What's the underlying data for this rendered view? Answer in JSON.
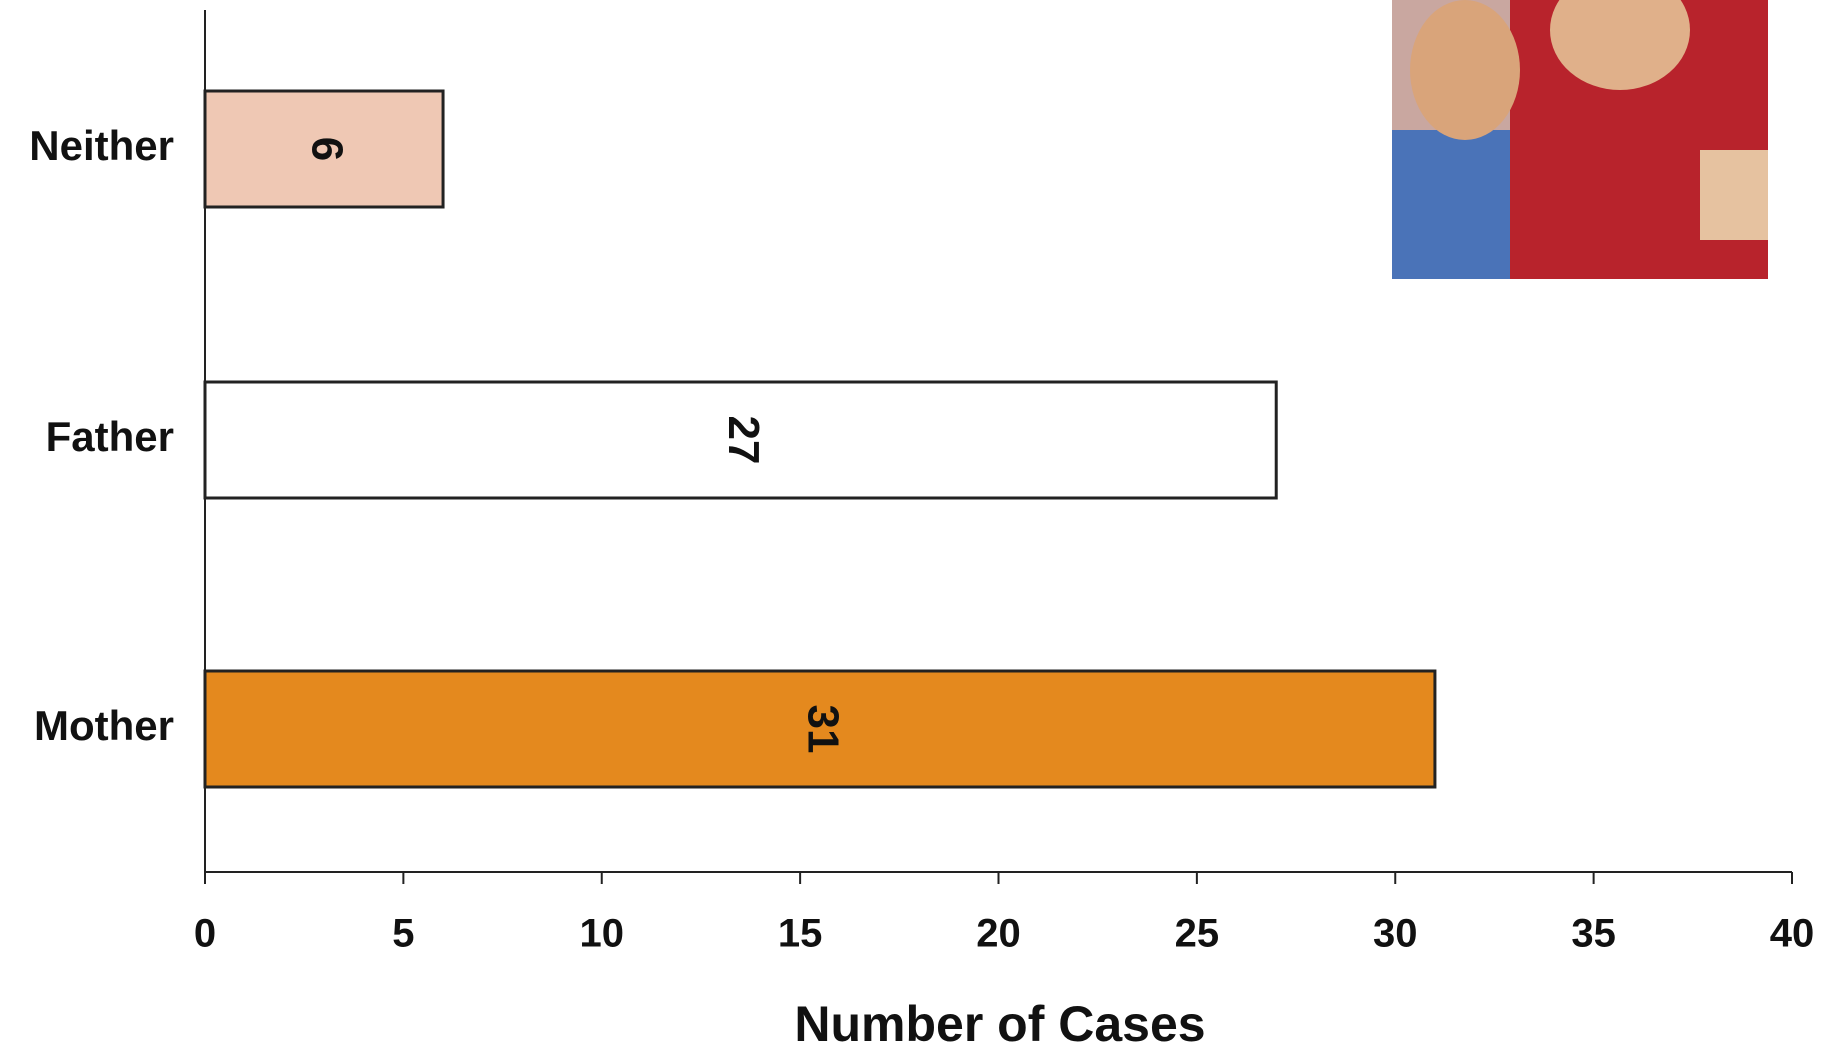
{
  "chart_data": {
    "type": "bar",
    "orientation": "horizontal",
    "categories": [
      "Neither",
      "Father",
      "Mother"
    ],
    "values": [
      6,
      27,
      31
    ],
    "colors": [
      "#efc8b4",
      "#ffffff",
      "#e4891e"
    ],
    "xlim": [
      0,
      40
    ],
    "xticks": [
      0,
      5,
      10,
      15,
      20,
      25,
      30,
      35,
      40
    ],
    "xlabel": "Number of Cases"
  }
}
